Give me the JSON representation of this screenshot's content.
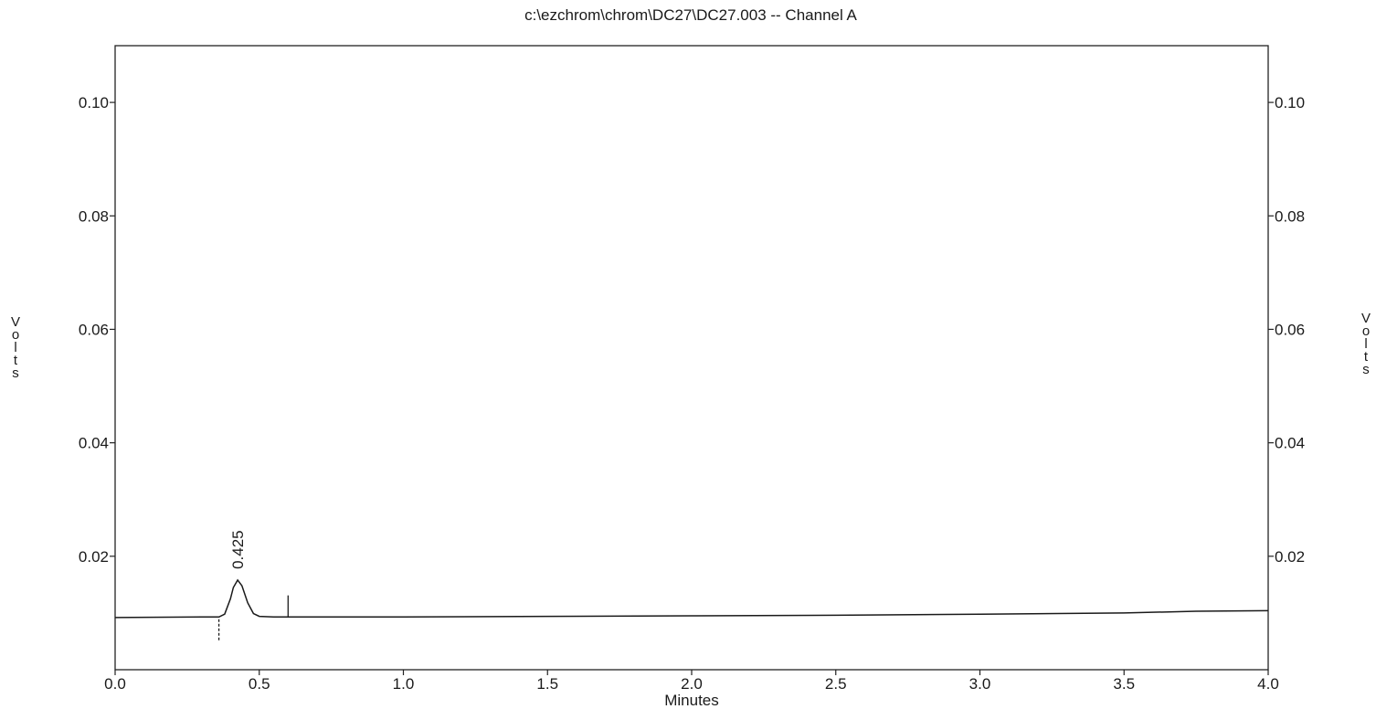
{
  "chart_data": {
    "type": "line",
    "title": "c:\\ezchrom\\chrom\\DC27\\DC27.003 -- Channel A",
    "xlabel": "Minutes",
    "ylabel_left": "Volts",
    "ylabel_right": "Volts",
    "xlim": [
      0.0,
      4.0
    ],
    "ylim": [
      0.0,
      0.11
    ],
    "x_ticks": [
      0.0,
      0.5,
      1.0,
      1.5,
      2.0,
      2.5,
      3.0,
      3.5,
      4.0
    ],
    "x_tick_labels": [
      "0.0",
      "0.5",
      "1.0",
      "1.5",
      "2.0",
      "2.5",
      "3.0",
      "3.5",
      "4.0"
    ],
    "y_ticks": [
      0.02,
      0.04,
      0.06,
      0.08,
      0.1
    ],
    "y_tick_labels": [
      "0.02",
      "0.04",
      "0.06",
      "0.08",
      "0.10"
    ],
    "grid": false,
    "series": [
      {
        "x": [
          0.0,
          0.3,
          0.36,
          0.38,
          0.4,
          0.41,
          0.425,
          0.44,
          0.46,
          0.48,
          0.5,
          0.55,
          0.6,
          1.0,
          1.5,
          2.0,
          2.5,
          3.0,
          3.5,
          3.75,
          4.0
        ],
        "y": [
          0.0092,
          0.0093,
          0.0093,
          0.0098,
          0.0125,
          0.0145,
          0.0158,
          0.0148,
          0.0118,
          0.0099,
          0.0094,
          0.0093,
          0.0093,
          0.0093,
          0.0094,
          0.0095,
          0.0096,
          0.0098,
          0.01,
          0.0103,
          0.0104
        ]
      }
    ],
    "annotations": [
      {
        "text": "0.425",
        "x": 0.425,
        "y": 0.0158
      }
    ],
    "event_markers": [
      {
        "x": 0.36,
        "y_from": 0.0052,
        "y_to": 0.0093,
        "style": "dashed"
      },
      {
        "x": 0.6,
        "y_from": 0.0093,
        "y_to": 0.0131,
        "style": "solid"
      }
    ]
  }
}
